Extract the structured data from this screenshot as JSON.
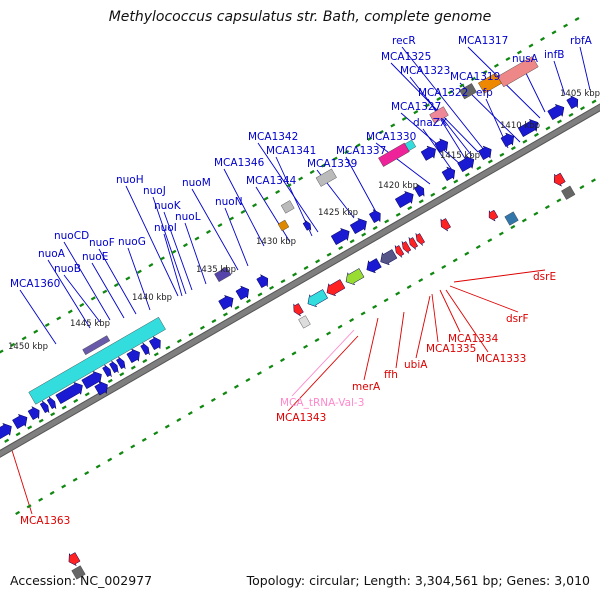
{
  "title": "Methylococcus capsulatus str. Bath, complete genome",
  "footer": {
    "accession": "Accession: NC_002977",
    "summary": "Topology: circular; Length: 3,304,561 bp; Genes: 3,010"
  },
  "colors": {
    "forward_gene": "#1a1ad2",
    "reverse_gene": "#ff1a1a",
    "label_forward": "#0000cc",
    "label_reverse": "#dd0000",
    "label_trna": "#ff88cc",
    "tick": "#118811",
    "backbone": "#7f7f7f"
  },
  "ticks": [
    "1405 kbp",
    "1410 kbp",
    "1415 kbp",
    "1420 kbp",
    "1425 kbp",
    "1430 kbp",
    "1435 kbp",
    "1440 kbp",
    "1445 kbp",
    "1450 kbp"
  ],
  "forward_labels": [
    "rbfA",
    "infB",
    "MCA1317",
    "nusA",
    "recR",
    "MCA1325",
    "MCA1323",
    "MCA1319",
    "MCA1322",
    "efp",
    "MCA1327",
    "dnaZX",
    "MCA1330",
    "MCA1342",
    "MCA1341",
    "MCA1337",
    "MCA1339",
    "MCA1346",
    "MCA1344",
    "nuoH",
    "nuoJ",
    "nuoK",
    "nuoM",
    "nuoI",
    "nuoL",
    "nuoN",
    "nuoCD",
    "nuoA",
    "nuoF",
    "nuoG",
    "nuoE",
    "nuoB",
    "MCA1360"
  ],
  "reverse_labels": [
    "dsrE",
    "dsrF",
    "MCA1334",
    "MCA1335",
    "MCA1333",
    "ubiA",
    "ffh",
    "merA",
    "MCA_tRNA-Val-3",
    "MCA1343",
    "MCA1363"
  ]
}
